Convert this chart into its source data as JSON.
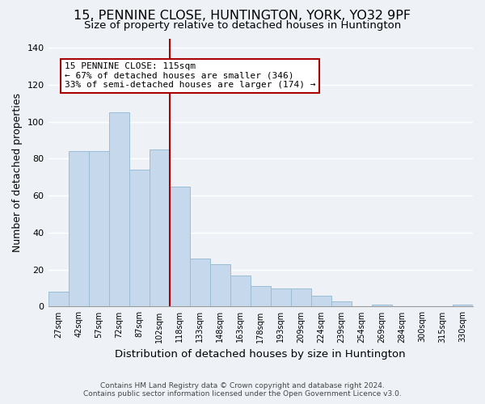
{
  "title": "15, PENNINE CLOSE, HUNTINGTON, YORK, YO32 9PF",
  "subtitle": "Size of property relative to detached houses in Huntington",
  "xlabel": "Distribution of detached houses by size in Huntington",
  "ylabel": "Number of detached properties",
  "footer_line1": "Contains HM Land Registry data © Crown copyright and database right 2024.",
  "footer_line2": "Contains public sector information licensed under the Open Government Licence v3.0.",
  "bin_labels": [
    "27sqm",
    "42sqm",
    "57sqm",
    "72sqm",
    "87sqm",
    "102sqm",
    "118sqm",
    "133sqm",
    "148sqm",
    "163sqm",
    "178sqm",
    "193sqm",
    "209sqm",
    "224sqm",
    "239sqm",
    "254sqm",
    "269sqm",
    "284sqm",
    "300sqm",
    "315sqm",
    "330sqm"
  ],
  "bar_heights": [
    8,
    84,
    84,
    105,
    74,
    85,
    65,
    26,
    23,
    17,
    11,
    10,
    10,
    6,
    3,
    0,
    1,
    0,
    0,
    0,
    1
  ],
  "bar_color": "#c6d9ec",
  "bar_edge_color": "#9bbdd4",
  "highlight_line_color": "#aa0000",
  "annotation_text": "15 PENNINE CLOSE: 115sqm\n← 67% of detached houses are smaller (346)\n33% of semi-detached houses are larger (174) →",
  "annotation_box_color": "#ffffff",
  "annotation_box_edge_color": "#aa0000",
  "ylim": [
    0,
    145
  ],
  "yticks": [
    0,
    20,
    40,
    60,
    80,
    100,
    120,
    140
  ],
  "title_fontsize": 11.5,
  "subtitle_fontsize": 9.5,
  "ylabel_fontsize": 9,
  "xlabel_fontsize": 9.5,
  "annotation_fontsize": 8,
  "background_color": "#eef2f7"
}
